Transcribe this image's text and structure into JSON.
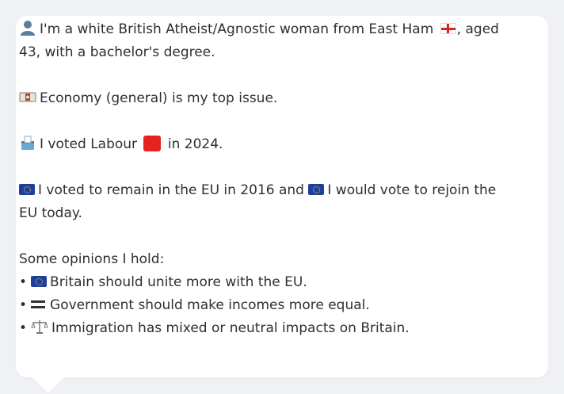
{
  "profile": {
    "intro_line": "I'm a white British Atheist/Agnostic woman from East Ham",
    "intro_tail": ", aged 43, with a bachelor's degree.",
    "top_issue": "Economy (general) is my top issue.",
    "vote_prefix": "I voted Labour",
    "vote_suffix": "in 2024.",
    "eu_part1": "I voted to remain in the EU in 2016 and",
    "eu_part2": "I would vote to rejoin the EU today.",
    "opinions_heading": "Some opinions I hold:",
    "opinions": [
      {
        "bullet": "•",
        "icon": "eu-flag-icon",
        "text": "Britain should unite more with the EU."
      },
      {
        "bullet": "•",
        "icon": "equals-icon",
        "text": "Government should make incomes more equal."
      },
      {
        "bullet": "•",
        "icon": "balance-scale-icon",
        "text": "Immigration has mixed or neutral impacts on Britain."
      }
    ]
  },
  "colors": {
    "card_bg": "#ffffff",
    "page_bg": "#f0f1f4",
    "text": "#2b2f36",
    "labour_red": "#e8231f",
    "eu_blue": "#1f3f9f"
  }
}
